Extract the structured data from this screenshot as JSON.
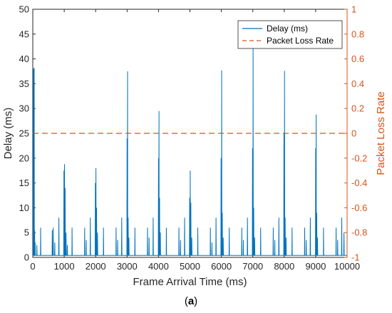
{
  "chart_data": {
    "type": "line",
    "xlabel": "Frame Arrival Time (ms)",
    "ylabel": "Delay (ms)",
    "y2label": "Packet Loss Rate",
    "caption_prefix": "(",
    "caption_letter": "a",
    "caption_suffix": ")",
    "xlim": [
      0,
      10000
    ],
    "ylim": [
      0,
      50
    ],
    "y2lim": [
      -1,
      1
    ],
    "x_ticks": [
      "0",
      "1000",
      "2000",
      "3000",
      "4000",
      "5000",
      "6000",
      "7000",
      "8000",
      "9000",
      "10000"
    ],
    "y_ticks": [
      "0",
      "5",
      "10",
      "15",
      "20",
      "25",
      "30",
      "35",
      "40",
      "45",
      "50"
    ],
    "y2_ticks": [
      "-1",
      "-0.8",
      "-0.6",
      "-0.4",
      "-0.2",
      "0",
      "0.2",
      "0.4",
      "0.6",
      "0.8",
      "1"
    ],
    "legend_position": "top-right",
    "series": [
      {
        "name": "Delay (ms)",
        "axis": "left",
        "color": "#0072bd",
        "style": "solid",
        "baseline": 0.4,
        "spikes": [
          [
            20,
            38
          ],
          [
            45,
            38.2
          ],
          [
            60,
            5.5
          ],
          [
            75,
            3
          ],
          [
            130,
            2.5
          ],
          [
            250,
            6
          ],
          [
            620,
            5.5
          ],
          [
            650,
            6
          ],
          [
            700,
            3
          ],
          [
            830,
            8
          ],
          [
            990,
            17.5
          ],
          [
            1010,
            18.8
          ],
          [
            1030,
            14
          ],
          [
            1060,
            5
          ],
          [
            1100,
            2.5
          ],
          [
            1250,
            6
          ],
          [
            1650,
            6
          ],
          [
            1700,
            3.5
          ],
          [
            1830,
            8
          ],
          [
            1990,
            15
          ],
          [
            2010,
            18
          ],
          [
            2030,
            10
          ],
          [
            2060,
            5
          ],
          [
            2250,
            6
          ],
          [
            2650,
            6
          ],
          [
            2700,
            3.5
          ],
          [
            2830,
            8
          ],
          [
            3000,
            24
          ],
          [
            3015,
            37.5
          ],
          [
            3035,
            8
          ],
          [
            3060,
            4
          ],
          [
            3250,
            6
          ],
          [
            3650,
            6
          ],
          [
            3700,
            4
          ],
          [
            3830,
            8
          ],
          [
            4000,
            20
          ],
          [
            4015,
            29.5
          ],
          [
            4035,
            12
          ],
          [
            4060,
            5
          ],
          [
            4250,
            6
          ],
          [
            4650,
            6
          ],
          [
            4700,
            3.5
          ],
          [
            4830,
            8
          ],
          [
            4990,
            12
          ],
          [
            5010,
            17.5
          ],
          [
            5030,
            11
          ],
          [
            5060,
            4
          ],
          [
            5250,
            6
          ],
          [
            5650,
            6
          ],
          [
            5700,
            3
          ],
          [
            5830,
            8
          ],
          [
            5990,
            20
          ],
          [
            6010,
            37.7
          ],
          [
            6030,
            9
          ],
          [
            6060,
            4
          ],
          [
            6250,
            6
          ],
          [
            6650,
            6
          ],
          [
            6700,
            3.5
          ],
          [
            6830,
            8
          ],
          [
            6990,
            22
          ],
          [
            7010,
            43.5
          ],
          [
            7030,
            10
          ],
          [
            7060,
            4
          ],
          [
            7250,
            6
          ],
          [
            7650,
            6
          ],
          [
            7700,
            3.5
          ],
          [
            7830,
            8
          ],
          [
            7990,
            25
          ],
          [
            8010,
            37.6
          ],
          [
            8030,
            8
          ],
          [
            8060,
            4
          ],
          [
            8250,
            6
          ],
          [
            8650,
            6
          ],
          [
            8700,
            3.5
          ],
          [
            8830,
            8
          ],
          [
            9000,
            22
          ],
          [
            9015,
            28.8
          ],
          [
            9035,
            9
          ],
          [
            9060,
            4
          ],
          [
            9250,
            6
          ],
          [
            9650,
            6
          ],
          [
            9700,
            3.5
          ],
          [
            9830,
            8
          ],
          [
            9900,
            5
          ]
        ]
      },
      {
        "name": "Packet Loss Rate",
        "axis": "right",
        "color": "#d95319",
        "style": "dashed",
        "x": [
          0,
          10000
        ],
        "y": [
          0,
          0
        ]
      }
    ]
  }
}
